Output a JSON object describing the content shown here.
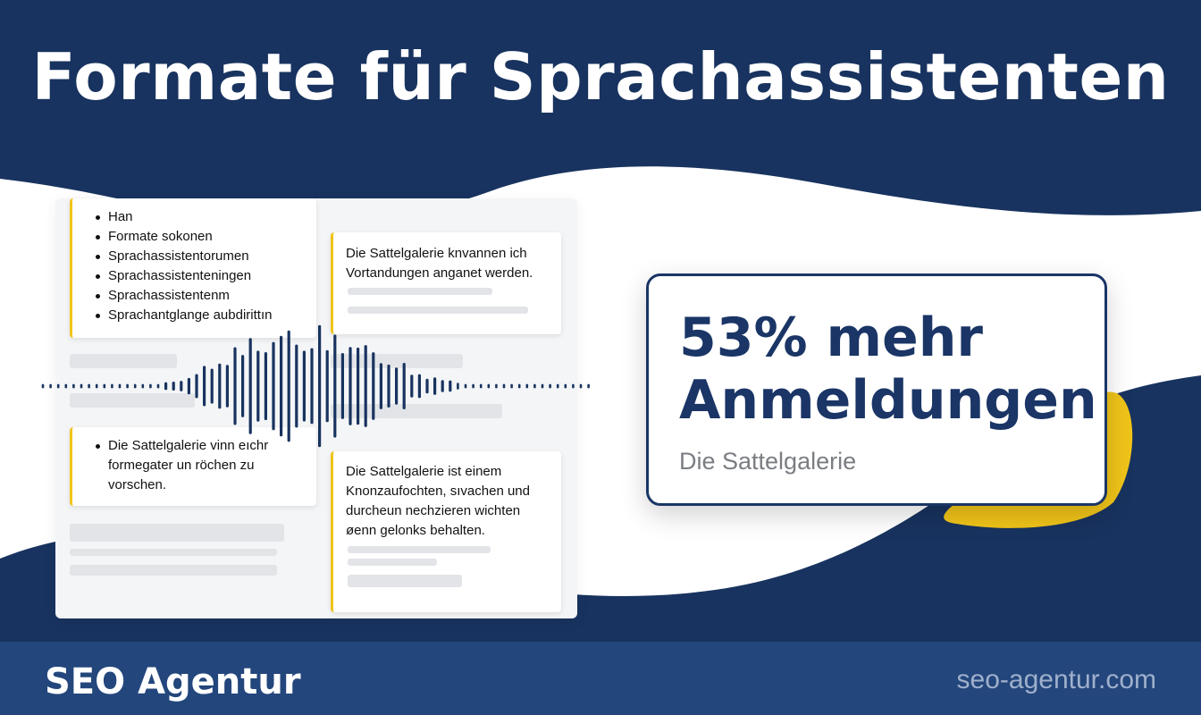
{
  "header": {
    "title": "Formate für Sprachassistenten"
  },
  "colors": {
    "navy": "#18335f",
    "navy_footer": "#23467c",
    "accent_yellow": "#f0c419",
    "card_text": "#111111"
  },
  "document_preview": {
    "card_top_left": {
      "items": [
        "Han",
        "Formate sokonen",
        "Sprachassistentorumen",
        "Sprachassistenteningen",
        "Sprachassistentenm",
        "Sprachantglange aubdirittın"
      ]
    },
    "card_top_right": {
      "lines": [
        "Die Sattelgalerie knvannen ich",
        "Vortandungen anganet werden."
      ]
    },
    "card_bottom_left": {
      "item_lines": [
        "Die Sattelgalerie vinn eıchr",
        "formegater un röchen zu",
        "vorschen."
      ]
    },
    "card_bottom_right": {
      "lines": [
        "Die Sattelgalerie ist einem",
        "Knonzaufochten, sıvachen und",
        "durcheun nechzieren wichten",
        "øenn gelonks behalten."
      ]
    }
  },
  "waveform": {
    "icon": "sound-wave-icon"
  },
  "stat": {
    "value_line1": "53% mehr",
    "value_line2": "Anmeldungen",
    "caption": "Die Sattelgalerie"
  },
  "footer": {
    "brand": "SEO Agentur",
    "website": "seo-agentur.com"
  }
}
